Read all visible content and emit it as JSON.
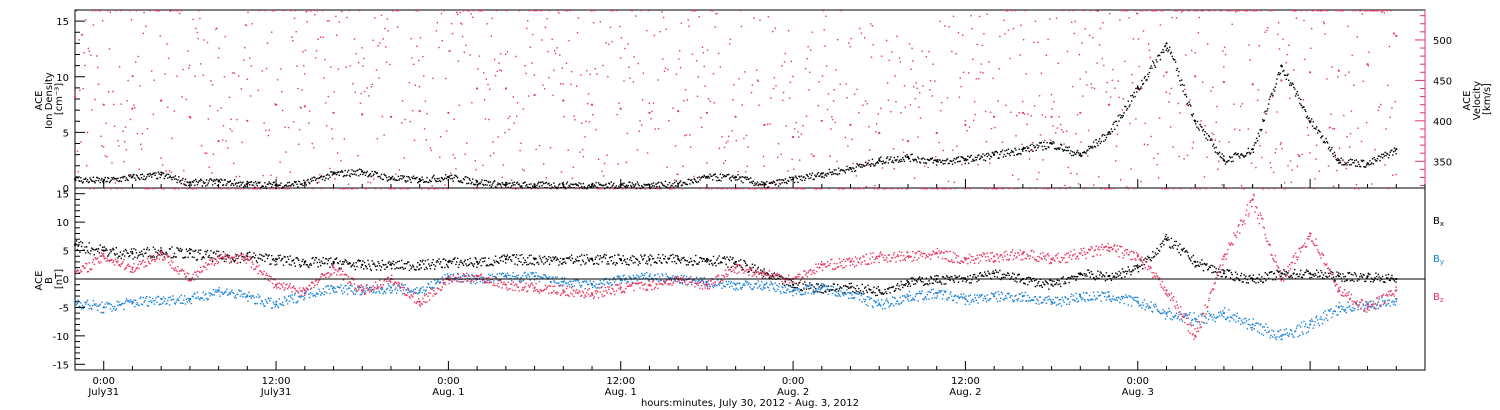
{
  "colors": {
    "black": "#000000",
    "pink": "#e8345f",
    "blue": "#1a82d8",
    "axis": "#000000"
  },
  "chart_data": [
    {
      "type": "scatter",
      "panel": "top",
      "title": "",
      "x_unit": "hours since July 31, 2012 00:00",
      "xlim": [
        -2,
        92
      ],
      "left_axis": {
        "label_lines": [
          "ACE",
          "Ion Density",
          "[cm⁻³]"
        ],
        "ylim": [
          0,
          16
        ],
        "ticks": [
          0,
          5,
          10,
          15
        ]
      },
      "right_axis": {
        "label_lines": [
          "ACE",
          "Velocity",
          "[km/s]"
        ],
        "ylim": [
          317,
          537
        ],
        "ticks": [
          350,
          400,
          450,
          500
        ]
      },
      "series": [
        {
          "name": "",
          "axis": "left",
          "color": "#000000",
          "x": [
            -2,
            0,
            2,
            4,
            6,
            8,
            10,
            12,
            14,
            16,
            18,
            20,
            22,
            24,
            26,
            28,
            30,
            32,
            34,
            36,
            38,
            40,
            42,
            44,
            46,
            48,
            50,
            52,
            54,
            56,
            58,
            60,
            62,
            64,
            66,
            68,
            70,
            72,
            74,
            76,
            78,
            80,
            82,
            84,
            86,
            88,
            90
          ],
          "y": [
            0.8,
            0.7,
            1.0,
            1.2,
            0.5,
            0.6,
            0.4,
            0.3,
            0.5,
            1.3,
            1.5,
            0.9,
            0.8,
            1.0,
            0.6,
            0.3,
            0.3,
            0.3,
            0.3,
            0.3,
            0.3,
            0.4,
            1.0,
            1.0,
            0.3,
            0.8,
            1.3,
            1.8,
            2.5,
            2.8,
            2.4,
            2.6,
            3.0,
            3.5,
            4.0,
            3.0,
            5.0,
            9.0,
            13.0,
            6.0,
            2.5,
            3.5,
            11.0,
            6.0,
            2.5,
            2.2,
            3.5
          ]
        },
        {
          "name": "",
          "axis": "right",
          "color": "#e8345f",
          "x": [
            -2,
            0,
            2,
            4,
            6,
            8,
            10,
            12,
            14,
            16,
            18,
            20,
            22,
            24,
            26,
            28,
            30,
            32,
            34,
            36,
            38,
            40,
            42,
            44,
            46,
            48,
            50,
            52,
            54,
            56,
            58,
            60,
            62,
            64,
            66,
            68,
            70,
            72,
            74,
            76,
            78,
            80,
            82,
            84,
            86,
            88,
            90
          ],
          "y": [
            430,
            420,
            415,
            425,
            405,
            375,
            400,
            420,
            418,
            410,
            408,
            405,
            412,
            410,
            440,
            440,
            432,
            425,
            420,
            415,
            410,
            412,
            410,
            405,
            395,
            380,
            400,
            395,
            385,
            375,
            385,
            395,
            405,
            410,
            405,
            410,
            420,
            440,
            460,
            455,
            448,
            445,
            450,
            460,
            462,
            470,
            505
          ]
        }
      ]
    },
    {
      "type": "scatter",
      "panel": "bottom",
      "title": "",
      "x_unit": "hours since July 31, 2012 00:00",
      "xlim": [
        -2,
        92
      ],
      "y_axis": {
        "label_lines": [
          "ACE",
          "B",
          "[nT]"
        ],
        "ylim": [
          -16,
          16
        ],
        "ticks": [
          -15,
          -10,
          -5,
          0,
          5,
          10,
          15
        ]
      },
      "series": [
        {
          "name": "Bx",
          "color": "#000000",
          "x": [
            -2,
            0,
            2,
            4,
            6,
            8,
            10,
            12,
            14,
            16,
            18,
            20,
            22,
            24,
            26,
            28,
            30,
            32,
            34,
            36,
            38,
            40,
            42,
            44,
            46,
            48,
            50,
            52,
            54,
            56,
            58,
            60,
            62,
            64,
            66,
            68,
            70,
            72,
            74,
            76,
            78,
            80,
            82,
            84,
            86,
            88,
            90
          ],
          "y": [
            6,
            5,
            4.5,
            5,
            4.5,
            4,
            4,
            3.5,
            3,
            3,
            2.5,
            2.5,
            2.5,
            3,
            3,
            3.5,
            3.5,
            3.5,
            3.5,
            3.5,
            3.5,
            3.5,
            3.5,
            3,
            1,
            -1,
            -1.5,
            -1.5,
            -2,
            -0.5,
            0,
            0,
            1,
            0,
            -1,
            1,
            0.5,
            2,
            7,
            3,
            1,
            0,
            1,
            1,
            0.5,
            0.5,
            0
          ]
        },
        {
          "name": "By",
          "color": "#1a82d8",
          "x": [
            -2,
            0,
            2,
            4,
            6,
            8,
            10,
            12,
            14,
            16,
            18,
            20,
            22,
            24,
            26,
            28,
            30,
            32,
            34,
            36,
            38,
            40,
            42,
            44,
            46,
            48,
            50,
            52,
            54,
            56,
            58,
            60,
            62,
            64,
            66,
            68,
            70,
            72,
            74,
            76,
            78,
            80,
            82,
            84,
            86,
            88,
            90
          ],
          "y": [
            -4,
            -5,
            -4,
            -3.5,
            -3.5,
            -2,
            -3,
            -4.5,
            -2.5,
            -1.5,
            -2,
            -1.5,
            -2,
            0.5,
            0,
            0.5,
            0.5,
            -0.5,
            -1,
            0,
            0.5,
            0,
            -0.5,
            -1,
            -1,
            -2,
            -1.5,
            -2.5,
            -4.5,
            -3,
            -2.5,
            -3.5,
            -3,
            -3,
            -4,
            -3,
            -3,
            -4,
            -6,
            -7,
            -6,
            -8,
            -10,
            -8,
            -5,
            -4.5,
            -3.5
          ]
        },
        {
          "name": "Bz",
          "color": "#e8345f",
          "x": [
            -2,
            0,
            2,
            4,
            6,
            8,
            10,
            12,
            14,
            16,
            18,
            20,
            22,
            24,
            26,
            28,
            30,
            32,
            34,
            36,
            38,
            40,
            42,
            44,
            46,
            48,
            50,
            52,
            54,
            56,
            58,
            60,
            62,
            64,
            66,
            68,
            70,
            72,
            74,
            76,
            78,
            80,
            82,
            84,
            86,
            88,
            90
          ],
          "y": [
            1,
            4,
            2,
            4.5,
            0,
            4,
            3.5,
            -1,
            -2,
            2,
            -2,
            0,
            -4,
            0,
            0.5,
            -1,
            -1.5,
            -2,
            -2.5,
            -1.5,
            -1,
            0,
            -1,
            2,
            1,
            0,
            2.5,
            3,
            4,
            4,
            4.5,
            3.5,
            4,
            4.5,
            3.5,
            4.5,
            5.5,
            4,
            -2,
            -10,
            4,
            14,
            0,
            8,
            -2,
            -5,
            -2
          ]
        }
      ],
      "legend": {
        "placement": "right",
        "labels": [
          {
            "main": "B",
            "sub": "x"
          },
          {
            "main": "B",
            "sub": "y"
          },
          {
            "main": "B",
            "sub": "z"
          }
        ]
      }
    }
  ],
  "x_axis": {
    "tick_labels": [
      {
        "time": "0:00",
        "day": "July31"
      },
      {
        "time": "12:00",
        "day": "July31"
      },
      {
        "time": "0:00",
        "day": "Aug. 1"
      },
      {
        "time": "12:00",
        "day": "Aug. 1"
      },
      {
        "time": "0:00",
        "day": "Aug. 2"
      },
      {
        "time": "12:00",
        "day": "Aug. 2"
      },
      {
        "time": "0:00",
        "day": "Aug. 3"
      }
    ],
    "tick_hours": [
      0,
      12,
      24,
      36,
      48,
      60,
      72
    ],
    "xlabel": "hours:minutes, July 30, 2012 - Aug.  3, 2012"
  }
}
